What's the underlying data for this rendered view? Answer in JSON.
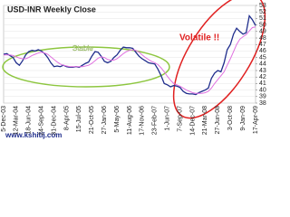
{
  "chart_data": {
    "type": "line",
    "title": "USD-INR Weekly Close",
    "annotations": [
      "Stable",
      "Volatile !!",
      "www.kshitij.com"
    ],
    "categories": [
      "5-Dec-03",
      null,
      null,
      null,
      "12-Mar-04",
      null,
      null,
      null,
      "18-Jun-04",
      null,
      null,
      null,
      "24-Sep-04",
      null,
      null,
      null,
      "31-Dec-04",
      null,
      null,
      null,
      "8-Apr-05",
      null,
      null,
      null,
      "15-Jul-05",
      null,
      null,
      null,
      "21-Oct-05",
      null,
      null,
      null,
      "27-Jan-06",
      null,
      null,
      null,
      "5-May-06",
      null,
      null,
      null,
      "11-Aug-06",
      null,
      null,
      null,
      "17-Nov-06",
      null,
      null,
      null,
      "23-Feb-07",
      null,
      null,
      null,
      "1-Jun-07",
      null,
      null,
      null,
      "7-Sep-07",
      null,
      null,
      null,
      "14-Dec-07",
      null,
      null,
      null,
      "21-Mar-08",
      null,
      null,
      null,
      "27-Jun-08",
      null,
      null,
      null,
      "3-Oct-08",
      null,
      null,
      null,
      "9-Jan-09",
      null,
      null,
      null,
      "17-Apr-09"
    ],
    "series": [
      {
        "color": "#1f2d8c",
        "values": [
          45.5,
          45.6,
          45.3,
          45.0,
          44.2,
          43.8,
          44.5,
          45.4,
          45.9,
          46.1,
          46.0,
          46.2,
          46.0,
          45.6,
          45.0,
          44.2,
          43.6,
          43.7,
          43.6,
          43.8,
          43.6,
          43.5,
          43.5,
          43.6,
          43.5,
          43.8,
          44.1,
          44.3,
          45.2,
          45.9,
          45.8,
          45.2,
          44.4,
          44.2,
          44.4,
          45.0,
          45.4,
          46.1,
          46.6,
          46.5,
          46.5,
          46.4,
          45.8,
          45.2,
          44.8,
          44.5,
          44.2,
          44.1,
          44.0,
          43.2,
          42.2,
          41.0,
          40.8,
          40.5,
          40.7,
          40.6,
          40.4,
          39.8,
          39.5,
          39.4,
          39.4,
          39.3,
          39.6,
          39.8,
          40.0,
          40.3,
          41.8,
          42.6,
          43.0,
          42.8,
          44.2,
          46.2,
          47.0,
          48.6,
          49.5,
          49.0,
          48.6,
          48.8,
          51.4,
          50.8,
          49.9
        ]
      },
      {
        "color": "#e070e0",
        "values": [
          45.4,
          45.4,
          45.4,
          45.3,
          45.1,
          44.9,
          44.8,
          44.8,
          45.0,
          45.3,
          45.5,
          45.7,
          45.8,
          45.7,
          45.5,
          45.1,
          44.7,
          44.3,
          44.0,
          43.8,
          43.7,
          43.6,
          43.6,
          43.6,
          43.6,
          43.6,
          43.7,
          43.8,
          44.1,
          44.5,
          44.9,
          45.1,
          45.0,
          44.7,
          44.6,
          44.6,
          44.8,
          45.2,
          45.6,
          45.9,
          46.1,
          46.2,
          46.1,
          45.8,
          45.4,
          45.0,
          44.7,
          44.4,
          44.2,
          43.9,
          43.4,
          42.8,
          42.1,
          41.5,
          41.0,
          40.8,
          40.6,
          40.3,
          40.0,
          39.8,
          39.6,
          39.5,
          39.5,
          39.5,
          39.6,
          39.8,
          40.3,
          41.0,
          41.6,
          42.2,
          42.8,
          43.8,
          44.8,
          45.9,
          47.0,
          47.8,
          48.2,
          48.5,
          49.1,
          49.6,
          49.7
        ]
      }
    ],
    "ylim": [
      38,
      53
    ],
    "yticks": [
      38,
      39,
      40,
      41,
      42,
      43,
      44,
      45,
      46,
      47,
      48,
      49,
      50,
      51,
      52,
      53
    ],
    "grid": true
  }
}
